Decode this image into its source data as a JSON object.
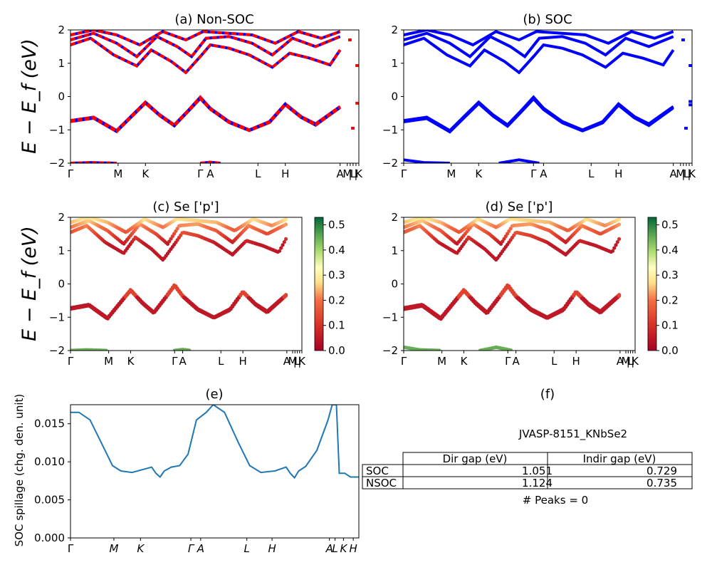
{
  "panels": {
    "a": {
      "title": "(a) Non-SOC"
    },
    "b": {
      "title": "(b) SOC"
    },
    "c": {
      "title": "(c)  Se ['p']"
    },
    "d": {
      "title": "(d) Se ['p']"
    },
    "e": {
      "title": "(e)"
    },
    "f": {
      "title": "(f)"
    }
  },
  "axes": {
    "energy_ylabel": "E − E_f (eV)",
    "spillage_ylabel": "SOC spillage (chg. den. unit)",
    "energy_yticks": [
      "2",
      "1",
      "0",
      "−1",
      "−2"
    ],
    "spillage_yticks": [
      "0.015",
      "0.010",
      "0.005",
      "0.000"
    ],
    "colorbar_c_ticks": [
      "0.5",
      "0.4",
      "0.3",
      "0.2",
      "0.1",
      "0.0"
    ],
    "colorbar_d_ticks": [
      "0.5",
      "0.4",
      "0.3",
      "0.2",
      "0.1",
      "0.0"
    ]
  },
  "kpath_labels": {
    "a": [
      "Γ",
      "M",
      "K",
      "Γ",
      "A",
      "L",
      "H",
      "A",
      "M",
      "|",
      "L",
      "|",
      "K"
    ],
    "e": [
      "Γ",
      "M",
      "K",
      "Γ",
      "A",
      "L",
      "H",
      "A",
      "L",
      "K",
      "H"
    ]
  },
  "table": {
    "material": "JVASP-8151_KNbSe2",
    "headers": [
      "Dir gap (eV)",
      "Indir gap (eV)"
    ],
    "rows": [
      {
        "label": "SOC",
        "dir": "1.051",
        "indir": "0.729"
      },
      {
        "label": "NSOC",
        "dir": "1.124",
        "indir": "0.735"
      }
    ],
    "peaks": "# Peaks = 0"
  },
  "colors": {
    "nonsoc": "#ff0000",
    "nonsoc_dash": "#0000ff",
    "soc": "#0000ff",
    "spillage": "#1f77b4"
  },
  "chart_data": [
    {
      "type": "line",
      "panel": "a",
      "title": "(a) Non-SOC",
      "ylabel": "E − E_f (eV)",
      "ylim": [
        -2,
        2
      ],
      "xlim": [
        0,
        10
      ],
      "kpoints": {
        "Γ": 0,
        "M": 1.65,
        "K": 2.6,
        "Γ2": 4.5,
        "A": 4.85,
        "L": 6.5,
        "H": 7.45,
        "A2": 9.35,
        "M2": 9.6,
        "L2": 9.8,
        "K2": 10
      },
      "series": [
        {
          "values": [
            [
              0,
              -0.72
            ],
            [
              0.8,
              -0.62
            ],
            [
              1.6,
              -1.02
            ],
            [
              2.15,
              -0.55
            ],
            [
              2.6,
              -0.17
            ],
            [
              3.1,
              -0.55
            ],
            [
              3.6,
              -0.85
            ],
            [
              4.1,
              -0.4
            ],
            [
              4.5,
              -0.02
            ],
            [
              4.85,
              -0.35
            ],
            [
              5.5,
              -0.75
            ],
            [
              6.2,
              -1.0
            ],
            [
              6.9,
              -0.75
            ],
            [
              7.45,
              -0.22
            ],
            [
              8.0,
              -0.6
            ],
            [
              8.5,
              -0.82
            ],
            [
              9.35,
              -0.3
            ]
          ]
        },
        {
          "values": [
            [
              0,
              -0.75
            ],
            [
              0.8,
              -0.65
            ],
            [
              1.6,
              -1.05
            ],
            [
              2.15,
              -0.58
            ],
            [
              2.6,
              -0.2
            ],
            [
              3.1,
              -0.58
            ],
            [
              3.6,
              -0.88
            ],
            [
              4.1,
              -0.43
            ],
            [
              4.5,
              -0.06
            ],
            [
              4.85,
              -0.38
            ],
            [
              5.5,
              -0.78
            ],
            [
              6.2,
              -1.02
            ],
            [
              6.9,
              -0.78
            ],
            [
              7.45,
              -0.25
            ],
            [
              8.0,
              -0.63
            ],
            [
              8.5,
              -0.86
            ],
            [
              9.35,
              -0.33
            ]
          ]
        },
        {
          "values": [
            [
              0,
              1.55
            ],
            [
              0.7,
              1.75
            ],
            [
              1.5,
              1.25
            ],
            [
              2.3,
              0.92
            ],
            [
              2.8,
              1.4
            ],
            [
              3.5,
              1.05
            ],
            [
              4.0,
              0.72
            ],
            [
              4.5,
              1.2
            ],
            [
              4.85,
              1.55
            ],
            [
              5.5,
              1.45
            ],
            [
              6.2,
              1.25
            ],
            [
              7.0,
              0.88
            ],
            [
              7.6,
              1.3
            ],
            [
              8.3,
              1.15
            ],
            [
              9.0,
              0.95
            ],
            [
              9.35,
              1.4
            ]
          ]
        },
        {
          "values": [
            [
              0,
              1.7
            ],
            [
              0.8,
              1.9
            ],
            [
              1.6,
              1.6
            ],
            [
              2.3,
              1.2
            ],
            [
              3.0,
              1.8
            ],
            [
              3.7,
              1.5
            ],
            [
              4.2,
              1.2
            ],
            [
              4.7,
              1.75
            ],
            [
              5.5,
              1.8
            ],
            [
              6.3,
              1.6
            ],
            [
              7.0,
              1.25
            ],
            [
              7.7,
              1.75
            ],
            [
              8.5,
              1.5
            ],
            [
              9.35,
              1.8
            ]
          ]
        },
        {
          "values": [
            [
              0,
              1.85
            ],
            [
              0.8,
              2.0
            ],
            [
              1.6,
              1.85
            ],
            [
              2.4,
              1.55
            ],
            [
              3.2,
              1.95
            ],
            [
              4.0,
              1.7
            ],
            [
              4.6,
              1.95
            ],
            [
              5.5,
              1.9
            ],
            [
              6.3,
              1.85
            ],
            [
              7.1,
              1.6
            ],
            [
              7.9,
              1.95
            ],
            [
              8.7,
              1.75
            ],
            [
              9.35,
              1.95
            ]
          ]
        },
        {
          "values": [
            [
              0,
              -2.0
            ],
            [
              0.7,
              -1.98
            ],
            [
              1.6,
              -2.0
            ]
          ]
        },
        {
          "values": [
            [
              4.5,
              -2.0
            ],
            [
              4.85,
              -1.97
            ],
            [
              5.2,
              -2.0
            ]
          ]
        }
      ]
    },
    {
      "type": "line",
      "panel": "b",
      "title": "(b) SOC",
      "ylabel": "",
      "ylim": [
        -2,
        2
      ],
      "xlim": [
        0,
        10
      ],
      "series": [
        {
          "values": [
            [
              0,
              -0.72
            ],
            [
              0.8,
              -0.62
            ],
            [
              1.6,
              -1.02
            ],
            [
              2.15,
              -0.55
            ],
            [
              2.6,
              -0.17
            ],
            [
              3.1,
              -0.55
            ],
            [
              3.6,
              -0.85
            ],
            [
              4.1,
              -0.4
            ],
            [
              4.5,
              -0.02
            ],
            [
              4.85,
              -0.35
            ],
            [
              5.5,
              -0.75
            ],
            [
              6.2,
              -1.0
            ],
            [
              6.9,
              -0.75
            ],
            [
              7.45,
              -0.22
            ],
            [
              8.0,
              -0.6
            ],
            [
              8.5,
              -0.82
            ],
            [
              9.35,
              -0.3
            ]
          ]
        },
        {
          "values": [
            [
              0,
              -0.76
            ],
            [
              0.8,
              -0.66
            ],
            [
              1.6,
              -1.06
            ],
            [
              2.15,
              -0.59
            ],
            [
              2.6,
              -0.21
            ],
            [
              3.1,
              -0.59
            ],
            [
              3.6,
              -0.89
            ],
            [
              4.1,
              -0.44
            ],
            [
              4.5,
              -0.07
            ],
            [
              4.85,
              -0.39
            ],
            [
              5.5,
              -0.79
            ],
            [
              6.2,
              -1.03
            ],
            [
              6.9,
              -0.79
            ],
            [
              7.45,
              -0.26
            ],
            [
              8.0,
              -0.64
            ],
            [
              8.5,
              -0.87
            ],
            [
              9.35,
              -0.34
            ]
          ]
        },
        {
          "values": [
            [
              0,
              1.55
            ],
            [
              0.7,
              1.75
            ],
            [
              1.5,
              1.25
            ],
            [
              2.3,
              0.92
            ],
            [
              2.8,
              1.4
            ],
            [
              3.5,
              1.05
            ],
            [
              4.0,
              0.72
            ],
            [
              4.5,
              1.2
            ],
            [
              4.85,
              1.55
            ],
            [
              5.5,
              1.45
            ],
            [
              6.2,
              1.25
            ],
            [
              7.0,
              0.88
            ],
            [
              7.6,
              1.3
            ],
            [
              8.3,
              1.15
            ],
            [
              9.0,
              0.95
            ],
            [
              9.35,
              1.4
            ]
          ]
        },
        {
          "values": [
            [
              0,
              1.7
            ],
            [
              0.8,
              1.9
            ],
            [
              1.6,
              1.6
            ],
            [
              2.3,
              1.2
            ],
            [
              3.0,
              1.8
            ],
            [
              3.7,
              1.5
            ],
            [
              4.2,
              1.2
            ],
            [
              4.7,
              1.75
            ],
            [
              5.5,
              1.8
            ],
            [
              6.3,
              1.6
            ],
            [
              7.0,
              1.25
            ],
            [
              7.7,
              1.75
            ],
            [
              8.5,
              1.5
            ],
            [
              9.35,
              1.8
            ]
          ]
        },
        {
          "values": [
            [
              0,
              1.85
            ],
            [
              0.8,
              2.0
            ],
            [
              1.6,
              1.85
            ],
            [
              2.4,
              1.55
            ],
            [
              3.2,
              1.95
            ],
            [
              4.0,
              1.7
            ],
            [
              4.6,
              1.95
            ],
            [
              5.5,
              1.9
            ],
            [
              6.3,
              1.85
            ],
            [
              7.1,
              1.6
            ],
            [
              7.9,
              1.95
            ],
            [
              8.7,
              1.75
            ],
            [
              9.35,
              1.95
            ]
          ]
        },
        {
          "values": [
            [
              0,
              -1.9
            ],
            [
              0.7,
              -1.98
            ],
            [
              1.6,
              -2.0
            ]
          ]
        },
        {
          "values": [
            [
              3.3,
              -2.0
            ],
            [
              4.0,
              -1.9
            ],
            [
              4.7,
              -2.0
            ]
          ]
        }
      ]
    },
    {
      "type": "scatter",
      "panel": "c",
      "title": "(c)  Se ['p']",
      "colorbar_range": [
        0.0,
        0.53
      ]
    },
    {
      "type": "scatter",
      "panel": "d",
      "title": "(d) Se ['p']",
      "colorbar_range": [
        0.0,
        0.53
      ]
    },
    {
      "type": "line",
      "panel": "e",
      "title": "(e)",
      "ylabel": "SOC spillage (chg. den. unit)",
      "ylim": [
        0,
        0.0175
      ],
      "xlim": [
        0,
        10
      ],
      "series": [
        {
          "values": [
            [
              0,
              0.0165
            ],
            [
              0.3,
              0.0165
            ],
            [
              0.7,
              0.0155
            ],
            [
              1.1,
              0.0125
            ],
            [
              1.5,
              0.0095
            ],
            [
              1.8,
              0.0088
            ],
            [
              2.2,
              0.0086
            ],
            [
              2.6,
              0.009
            ],
            [
              2.9,
              0.0093
            ],
            [
              3.05,
              0.0085
            ],
            [
              3.2,
              0.008
            ],
            [
              3.35,
              0.0088
            ],
            [
              3.6,
              0.0093
            ],
            [
              3.9,
              0.0095
            ],
            [
              4.2,
              0.011
            ],
            [
              4.5,
              0.0155
            ],
            [
              4.85,
              0.0165
            ],
            [
              5.1,
              0.0175
            ],
            [
              5.5,
              0.0165
            ],
            [
              6.0,
              0.0125
            ],
            [
              6.4,
              0.0095
            ],
            [
              6.8,
              0.0086
            ],
            [
              7.3,
              0.0088
            ],
            [
              7.7,
              0.0093
            ],
            [
              7.85,
              0.0085
            ],
            [
              8.0,
              0.0079
            ],
            [
              8.15,
              0.0088
            ],
            [
              8.4,
              0.0094
            ],
            [
              8.8,
              0.0115
            ],
            [
              9.2,
              0.0155
            ],
            [
              9.35,
              0.0175
            ],
            [
              9.5,
              0.0175
            ],
            [
              9.6,
              0.0085
            ],
            [
              9.8,
              0.0085
            ],
            [
              10.0,
              0.008
            ],
            [
              10.3,
              0.008
            ]
          ]
        }
      ]
    }
  ]
}
